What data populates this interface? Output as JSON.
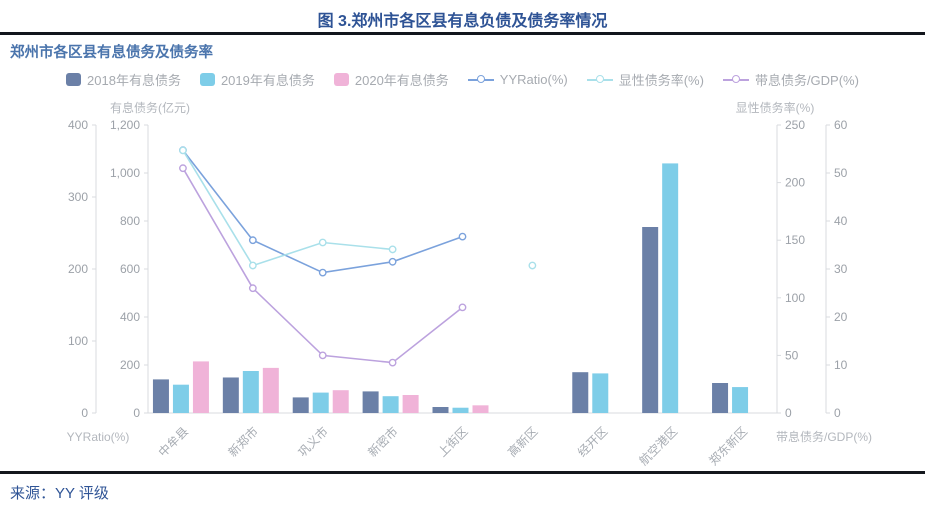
{
  "page": {
    "title": "图 3.郑州市各区县有息负债及债务率情况",
    "source": "来源：YY 评级"
  },
  "chart": {
    "title": "郑州市各区县有息债务及债务率"
  },
  "chart_data": {
    "type": "combo-bar-line",
    "categories": [
      "中牟县",
      "新郑市",
      "巩义市",
      "新密市",
      "上街区",
      "高新区",
      "经开区",
      "航空港区",
      "郑东新区"
    ],
    "bar_series": [
      {
        "name": "2018年有息债务",
        "color": "#6B80A7",
        "axis": "debt",
        "values": [
          140,
          148,
          65,
          90,
          25,
          null,
          170,
          775,
          125
        ]
      },
      {
        "name": "2019年有息债务",
        "color": "#7ECDE8",
        "axis": "debt",
        "values": [
          118,
          175,
          85,
          70,
          22,
          null,
          165,
          1040,
          108
        ]
      },
      {
        "name": "2020年有息债务",
        "color": "#F0B3D8",
        "axis": "debt",
        "values": [
          215,
          188,
          95,
          75,
          32,
          null,
          null,
          null,
          null
        ]
      }
    ],
    "line_series": [
      {
        "name": "YYRatio(%)",
        "color": "#7BA2DC",
        "axis": "yyratio",
        "values": [
          365,
          240,
          195,
          210,
          245,
          null,
          null,
          null,
          null
        ]
      },
      {
        "name": "显性债务率(%)",
        "color": "#A9E0EA",
        "axis": "explicit",
        "values": [
          228,
          128,
          148,
          142,
          null,
          128,
          null,
          null,
          null
        ]
      },
      {
        "name": "带息债务/GDP(%)",
        "color": "#BCA2DE",
        "axis": "gdp",
        "values": [
          51,
          26,
          12,
          10.5,
          22,
          null,
          null,
          null,
          null
        ]
      }
    ],
    "axes": {
      "yyratio": {
        "label": "YYRatio(%)",
        "min": 0,
        "max": 400,
        "step": 100,
        "position": "left-outer",
        "label_side": "bottom"
      },
      "debt": {
        "label": "有息债务(亿元)",
        "min": 0,
        "max": 1200,
        "step": 200,
        "position": "left-inner",
        "label_side": "top"
      },
      "explicit": {
        "label": "显性债务率(%)",
        "min": 0,
        "max": 250,
        "step": 50,
        "position": "right-inner",
        "label_side": "top"
      },
      "gdp": {
        "label": "带息债务/GDP(%)",
        "min": 0,
        "max": 60,
        "step": 10,
        "position": "right-outer",
        "label_side": "bottom"
      }
    },
    "legend_position": "top",
    "grid": false
  }
}
